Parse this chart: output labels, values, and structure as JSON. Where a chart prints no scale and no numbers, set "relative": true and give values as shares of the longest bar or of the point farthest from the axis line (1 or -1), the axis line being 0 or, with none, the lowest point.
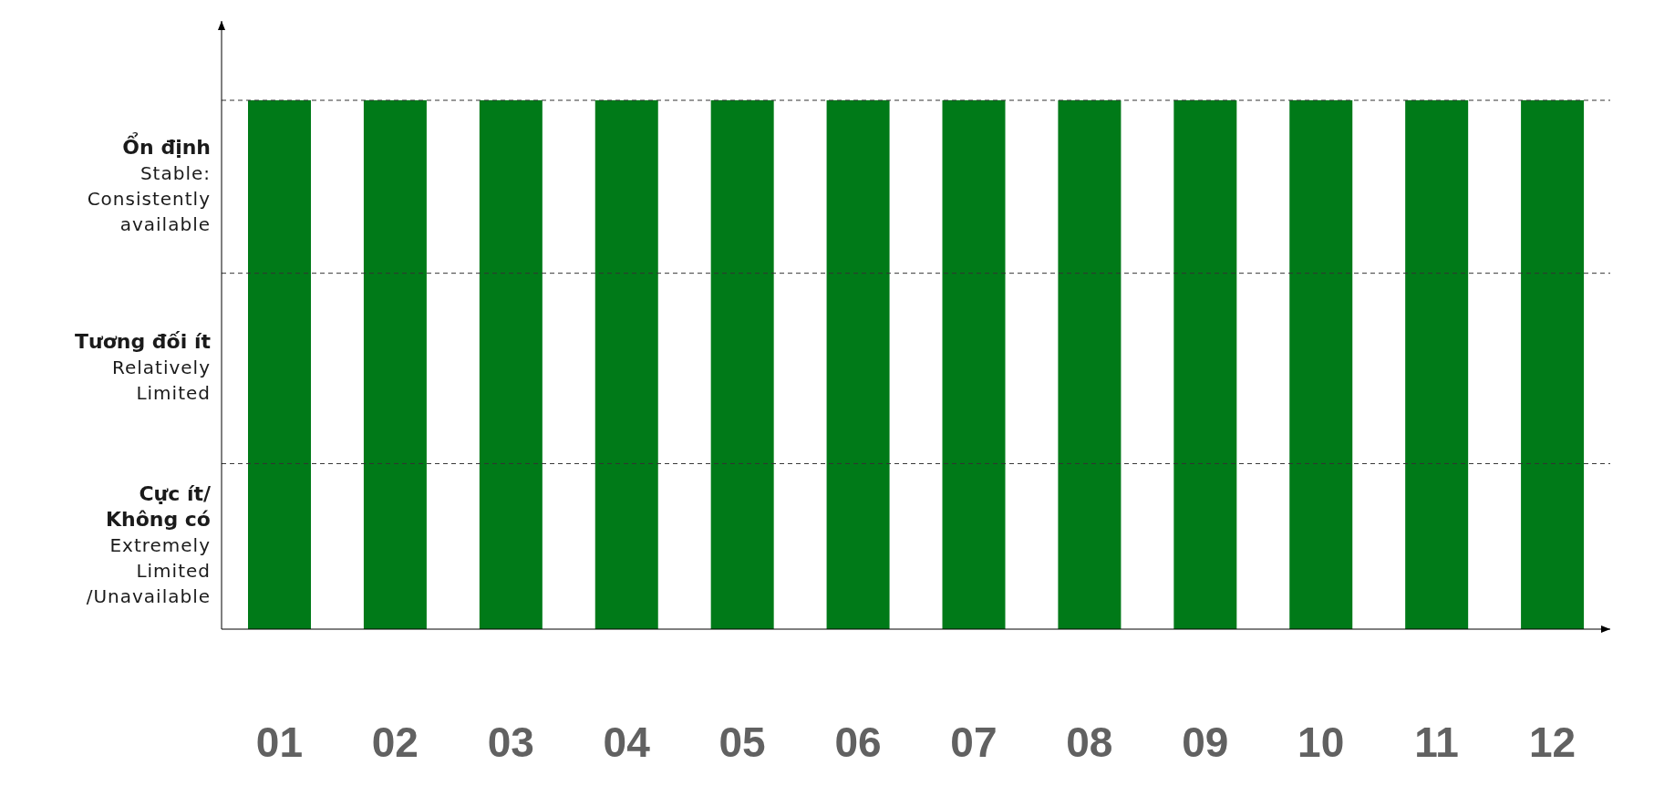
{
  "chart_data": {
    "type": "bar",
    "relative": true,
    "categories": [
      "01",
      "02",
      "03",
      "04",
      "05",
      "06",
      "07",
      "08",
      "09",
      "10",
      "11",
      "12"
    ],
    "values": [
      1,
      1,
      1,
      1,
      1,
      1,
      1,
      1,
      1,
      1,
      1,
      1
    ],
    "color": "#007a18",
    "annotations": [
      "Ổn định\n\nStable:\nConsistently\navailable",
      "Tương đối ít\n\nRelatively\nLimited",
      "Cực ít/\nKhông có\n\nExtremely\nLimited\n/Unavailable"
    ],
    "ref_lines": [
      {
        "axis": "y",
        "value": 0.313,
        "color": "#333333",
        "line_style": "dashed"
      },
      {
        "axis": "y",
        "value": 0.673,
        "color": "#333333",
        "line_style": "dashed"
      },
      {
        "axis": "y",
        "value": 1,
        "color": "#333333",
        "line_style": "dashed"
      }
    ]
  }
}
